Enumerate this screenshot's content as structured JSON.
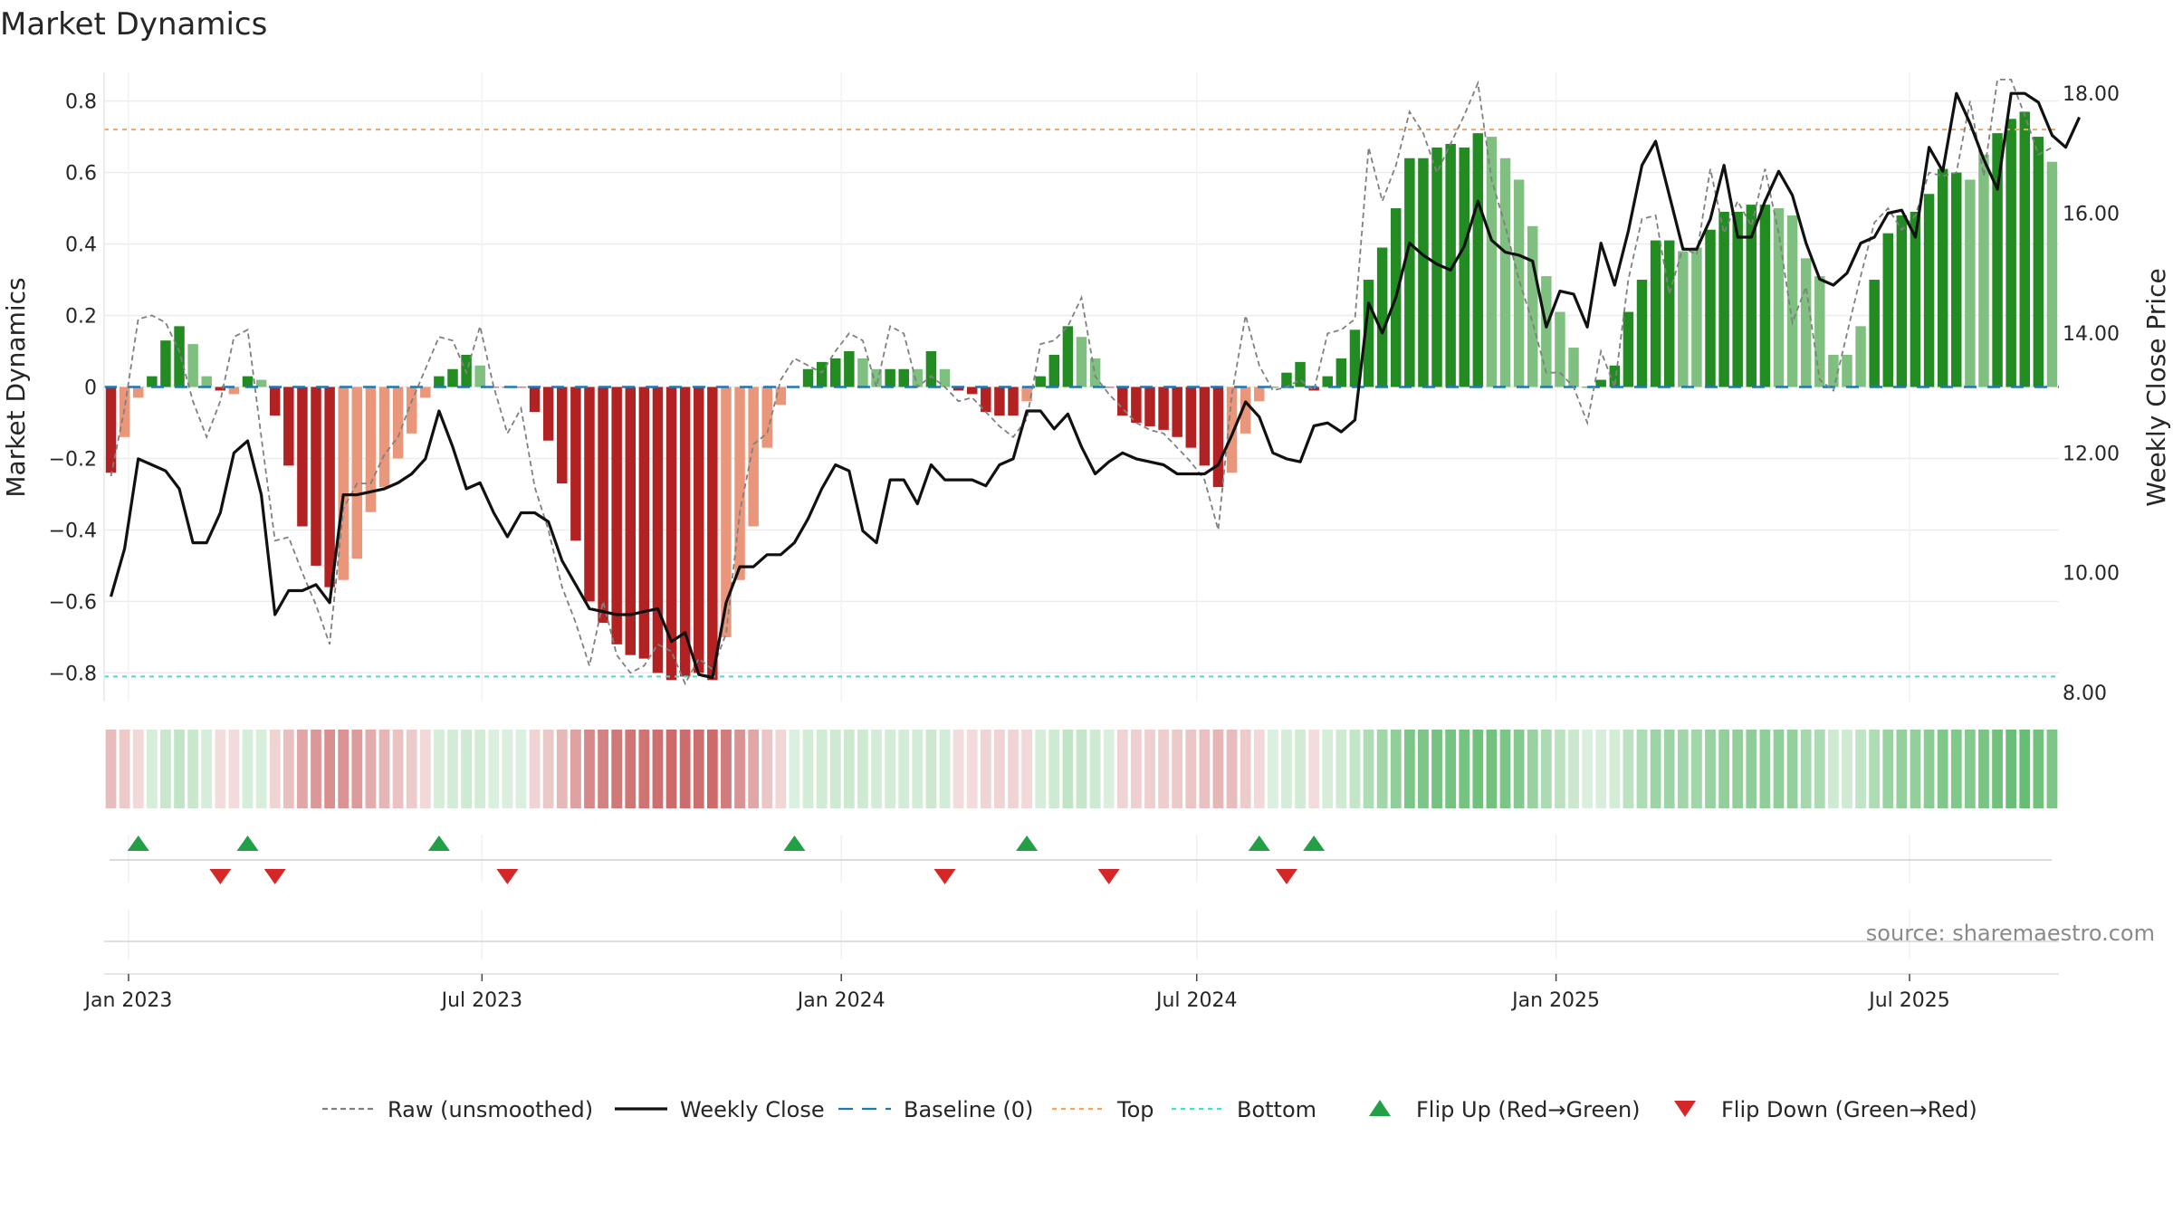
{
  "title": "Market Dynamics",
  "source": "source: sharemaestro.com",
  "colors": {
    "strong_green": "#228b22",
    "light_green": "#7fbf7f",
    "strong_red": "#b22222",
    "light_red": "#e9967a",
    "price_line": "#111111",
    "raw_line": "#808080",
    "baseline": "#1f77b4",
    "top_line": "#f4a460",
    "bottom_line": "#40e0d0",
    "flip_up": "#22a045",
    "flip_down": "#d62728"
  },
  "chart_data": {
    "type": "bar",
    "title": "Market Dynamics",
    "xlabel": "",
    "ylabel": "Market Dynamics",
    "y2label": "Weekly Close Price",
    "ylim": [
      -0.88,
      0.88
    ],
    "y2lim": [
      7.85,
      18.35
    ],
    "y_ticks": [
      -0.8,
      -0.6,
      -0.4,
      -0.2,
      0,
      0.2,
      0.4,
      0.6,
      0.8
    ],
    "y_tick_labels": [
      "−0.8",
      "−0.6",
      "−0.4",
      "−0.2",
      "0",
      "0.2",
      "0.4",
      "0.6",
      "0.8"
    ],
    "y2_ticks": [
      8,
      10,
      12,
      14,
      16,
      18
    ],
    "y2_tick_labels": [
      "8.00",
      "10.00",
      "12.00",
      "14.00",
      "16.00",
      "18.00"
    ],
    "x_start": "2022-12-23",
    "x_step_days": 7,
    "x_ticks": [
      "2023-01-01",
      "2023-07-01",
      "2024-01-01",
      "2024-07-01",
      "2025-01-01",
      "2025-07-01"
    ],
    "x_tick_labels": [
      "Jan 2023",
      "Jul 2023",
      "Jan 2024",
      "Jul 2024",
      "Jan 2025",
      "Jul 2025"
    ],
    "grid": true,
    "legend_position": "bottom-center",
    "top_level": 0.72,
    "bottom_level": -0.81,
    "baseline_level": 0,
    "series": [
      {
        "name": "Market Dynamics (smoothed)",
        "kind": "bar",
        "values": [
          -0.24,
          -0.14,
          -0.03,
          0.03,
          0.13,
          0.17,
          0.12,
          0.03,
          -0.01,
          -0.02,
          0.03,
          0.02,
          -0.08,
          -0.22,
          -0.39,
          -0.5,
          -0.56,
          -0.54,
          -0.48,
          -0.35,
          -0.28,
          -0.2,
          -0.13,
          -0.03,
          0.03,
          0.05,
          0.09,
          0.06,
          0.0,
          0.0,
          0.0,
          -0.07,
          -0.15,
          -0.27,
          -0.43,
          -0.6,
          -0.66,
          -0.72,
          -0.75,
          -0.76,
          -0.8,
          -0.82,
          -0.81,
          -0.8,
          -0.82,
          -0.7,
          -0.54,
          -0.39,
          -0.17,
          -0.05,
          0.0,
          0.05,
          0.07,
          0.08,
          0.1,
          0.08,
          0.05,
          0.05,
          0.05,
          0.05,
          0.1,
          0.05,
          -0.01,
          -0.02,
          -0.07,
          -0.08,
          -0.08,
          -0.04,
          0.03,
          0.09,
          0.17,
          0.14,
          0.08,
          0.0,
          -0.08,
          -0.1,
          -0.11,
          -0.12,
          -0.14,
          -0.17,
          -0.22,
          -0.28,
          -0.24,
          -0.13,
          -0.04,
          0.0,
          0.04,
          0.07,
          -0.01,
          0.03,
          0.08,
          0.16,
          0.3,
          0.39,
          0.5,
          0.64,
          0.64,
          0.67,
          0.68,
          0.67,
          0.71,
          0.7,
          0.64,
          0.58,
          0.45,
          0.31,
          0.21,
          0.11,
          0.0,
          0.02,
          0.06,
          0.21,
          0.3,
          0.41,
          0.41,
          0.38,
          0.39,
          0.44,
          0.49,
          0.49,
          0.51,
          0.51,
          0.5,
          0.48,
          0.36,
          0.31,
          0.09,
          0.09,
          0.17,
          0.3,
          0.43,
          0.48,
          0.49,
          0.54,
          0.61,
          0.6,
          0.58,
          0.65,
          0.71,
          0.75,
          0.77,
          0.7,
          0.63
        ]
      },
      {
        "name": "Raw (unsmoothed)",
        "kind": "line",
        "values": [
          -0.25,
          -0.06,
          0.19,
          0.2,
          0.18,
          0.1,
          -0.04,
          -0.14,
          -0.04,
          0.14,
          0.16,
          -0.14,
          -0.43,
          -0.42,
          -0.52,
          -0.61,
          -0.72,
          -0.34,
          -0.27,
          -0.27,
          -0.19,
          -0.14,
          -0.04,
          0.05,
          0.14,
          0.13,
          0.04,
          0.17,
          0.0,
          -0.13,
          -0.06,
          -0.28,
          -0.4,
          -0.56,
          -0.66,
          -0.78,
          -0.6,
          -0.75,
          -0.8,
          -0.78,
          -0.72,
          -0.74,
          -0.83,
          -0.76,
          -0.79,
          -0.69,
          -0.35,
          -0.16,
          -0.13,
          0.02,
          0.08,
          0.06,
          0.04,
          0.1,
          0.15,
          0.13,
          0.0,
          0.17,
          0.15,
          0.0,
          0.03,
          0.0,
          -0.04,
          -0.03,
          -0.07,
          -0.11,
          -0.14,
          -0.09,
          0.12,
          0.13,
          0.17,
          0.25,
          0.03,
          -0.02,
          -0.06,
          -0.1,
          -0.12,
          -0.13,
          -0.17,
          -0.21,
          -0.26,
          -0.4,
          -0.02,
          0.2,
          0.06,
          -0.01,
          0.0,
          0.02,
          -0.01,
          0.15,
          0.16,
          0.19,
          0.67,
          0.52,
          0.62,
          0.77,
          0.71,
          0.6,
          0.68,
          0.76,
          0.85,
          0.58,
          0.45,
          0.3,
          0.18,
          0.04,
          0.04,
          0.0,
          -0.1,
          0.1,
          0.0,
          0.3,
          0.47,
          0.48,
          0.26,
          0.39,
          0.37,
          0.61,
          0.43,
          0.52,
          0.45,
          0.61,
          0.43,
          0.18,
          0.28,
          0.02,
          -0.01,
          0.15,
          0.31,
          0.46,
          0.5,
          0.44,
          0.48,
          0.6,
          0.59,
          0.6,
          0.8,
          0.59,
          0.86,
          0.86,
          0.76,
          0.65,
          0.67
        ]
      },
      {
        "name": "Weekly Close",
        "kind": "line",
        "axis": "right",
        "values": [
          9.6,
          10.4,
          11.9,
          11.8,
          11.7,
          11.4,
          10.5,
          10.5,
          11.0,
          12.0,
          12.2,
          11.3,
          9.3,
          9.7,
          9.7,
          9.8,
          9.5,
          11.3,
          11.3,
          11.35,
          11.4,
          11.5,
          11.65,
          11.9,
          12.7,
          12.1,
          11.4,
          11.5,
          11.0,
          10.6,
          11.0,
          11.0,
          10.85,
          10.2,
          9.8,
          9.4,
          9.35,
          9.3,
          9.3,
          9.35,
          9.4,
          8.85,
          9.0,
          8.3,
          8.25,
          9.5,
          10.1,
          10.1,
          10.3,
          10.3,
          10.5,
          10.9,
          11.4,
          11.8,
          11.7,
          10.7,
          10.5,
          11.55,
          11.55,
          11.15,
          11.8,
          11.55,
          11.55,
          11.55,
          11.45,
          11.8,
          11.9,
          12.7,
          12.7,
          12.4,
          12.65,
          12.1,
          11.65,
          11.85,
          12.0,
          11.9,
          11.85,
          11.8,
          11.65,
          11.65,
          11.65,
          11.8,
          12.3,
          12.85,
          12.6,
          12.0,
          11.9,
          11.85,
          12.45,
          12.5,
          12.35,
          12.55,
          14.5,
          14.0,
          14.6,
          15.5,
          15.3,
          15.15,
          15.05,
          15.45,
          16.2,
          15.55,
          15.35,
          15.3,
          15.2,
          14.1,
          14.7,
          14.65,
          14.1,
          15.5,
          14.8,
          15.7,
          16.8,
          17.2,
          16.3,
          15.4,
          15.4,
          15.9,
          16.8,
          15.6,
          15.6,
          16.2,
          16.7,
          16.3,
          15.5,
          14.9,
          14.8,
          15.0,
          15.5,
          15.6,
          16.0,
          16.05,
          15.6,
          17.1,
          16.7,
          18.0,
          17.5,
          16.9,
          16.4,
          18.0,
          18.0,
          17.85,
          17.3,
          17.1,
          17.6
        ]
      }
    ],
    "bar_color_codes": [
      "sr",
      "lr",
      "lr",
      "sg",
      "sg",
      "sg",
      "lg",
      "lg",
      "sr",
      "lr",
      "sg",
      "lg",
      "sr",
      "sr",
      "sr",
      "sr",
      "sr",
      "lr",
      "lr",
      "lr",
      "lr",
      "lr",
      "lr",
      "lr",
      "sg",
      "sg",
      "sg",
      "lg",
      "sr",
      "sr",
      "sr",
      "sr",
      "sr",
      "sr",
      "sr",
      "sr",
      "sr",
      "sr",
      "sr",
      "sr",
      "sr",
      "sr",
      "sr",
      "sr",
      "sr",
      "lr",
      "lr",
      "lr",
      "lr",
      "lr",
      "sg",
      "sg",
      "sg",
      "sg",
      "sg",
      "lg",
      "lg",
      "sg",
      "sg",
      "lg",
      "sg",
      "lg",
      "sr",
      "sr",
      "sr",
      "sr",
      "sr",
      "lr",
      "sg",
      "sg",
      "sg",
      "lg",
      "lg",
      "sr",
      "sr",
      "sr",
      "sr",
      "sr",
      "sr",
      "sr",
      "sr",
      "sr",
      "lr",
      "lr",
      "lr",
      "sg",
      "sg",
      "sg",
      "sr",
      "sg",
      "sg",
      "sg",
      "sg",
      "sg",
      "sg",
      "sg",
      "sg",
      "sg",
      "sg",
      "sg",
      "sg",
      "lg",
      "lg",
      "lg",
      "lg",
      "lg",
      "lg",
      "lg",
      "sg",
      "sg",
      "sg",
      "sg",
      "sg",
      "sg",
      "sg",
      "lg",
      "lg",
      "sg",
      "sg",
      "sg",
      "sg",
      "sg",
      "lg",
      "lg",
      "lg",
      "lg",
      "lg",
      "lg",
      "lg",
      "sg",
      "sg",
      "sg",
      "sg",
      "sg",
      "sg",
      "sg",
      "lg",
      "lg",
      "sg",
      "sg",
      "sg",
      "sg",
      "lg",
      "lg",
      "lg"
    ],
    "flip_up_weeks": [
      2,
      10,
      24,
      50,
      67,
      84,
      88
    ],
    "flip_down_weeks": [
      8,
      12,
      29,
      61,
      73,
      86
    ],
    "legend": [
      {
        "label": "Raw (unsmoothed)",
        "symbol": "dashed-line",
        "color": "#808080"
      },
      {
        "label": "Weekly Close",
        "symbol": "solid-line",
        "color": "#111111"
      },
      {
        "label": "Baseline (0)",
        "symbol": "long-dash-line",
        "color": "#1f77b4"
      },
      {
        "label": "Top",
        "symbol": "dotted-line",
        "color": "#f4a460"
      },
      {
        "label": "Bottom",
        "symbol": "dotted-line",
        "color": "#40e0d0"
      },
      {
        "label": "Flip Up (Red→Green)",
        "symbol": "triangle-up",
        "color": "#22a045"
      },
      {
        "label": "Flip Down (Green→Red)",
        "symbol": "triangle-down",
        "color": "#d62728"
      }
    ]
  }
}
